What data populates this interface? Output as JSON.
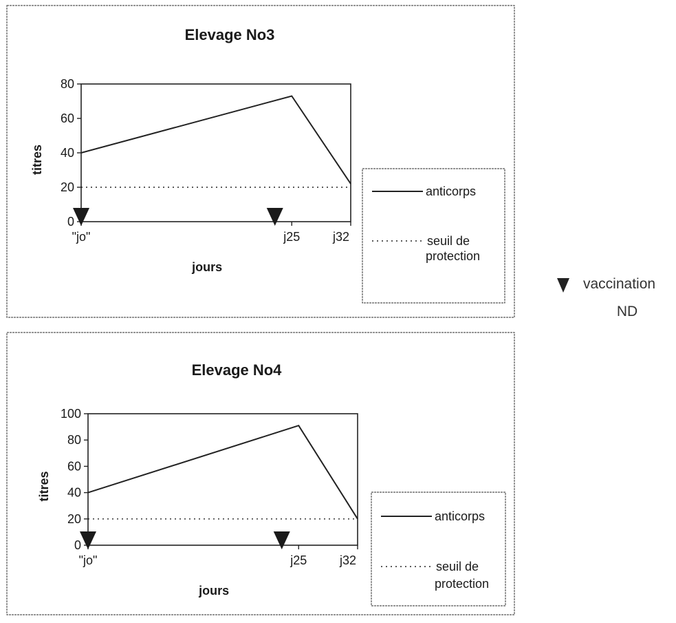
{
  "side_legend": {
    "marker_icon": "triangle-down-icon",
    "line1": "vaccination",
    "line2": "ND"
  },
  "chart_data": [
    {
      "type": "line",
      "title": "Elevage No3",
      "xlabel": "jours",
      "ylabel": "titres",
      "categories": [
        "\"jo\"",
        "j25",
        "j32"
      ],
      "x": [
        0,
        25,
        32
      ],
      "ylim": [
        0,
        80
      ],
      "yticks": [
        0,
        20,
        40,
        60,
        80
      ],
      "grid": false,
      "legend_position": "right",
      "series": [
        {
          "name": "anticorps",
          "style": "solid",
          "values": [
            40,
            73,
            22
          ]
        },
        {
          "name": "seuil de protection",
          "style": "dotted",
          "values": [
            20,
            20,
            20
          ]
        }
      ],
      "vaccination_days": [
        0,
        23
      ]
    },
    {
      "type": "line",
      "title": "Elevage No4",
      "xlabel": "jours",
      "ylabel": "titres",
      "categories": [
        "\"jo\"",
        "j25",
        "j32"
      ],
      "x": [
        0,
        25,
        32
      ],
      "ylim": [
        0,
        100
      ],
      "yticks": [
        0,
        20,
        40,
        60,
        80,
        100
      ],
      "grid": false,
      "legend_position": "right",
      "series": [
        {
          "name": "anticorps",
          "style": "solid",
          "values": [
            40,
            91,
            20
          ]
        },
        {
          "name": "seuil de protection",
          "style": "dotted",
          "values": [
            20,
            20,
            20
          ]
        }
      ],
      "vaccination_days": [
        0,
        23
      ]
    }
  ]
}
